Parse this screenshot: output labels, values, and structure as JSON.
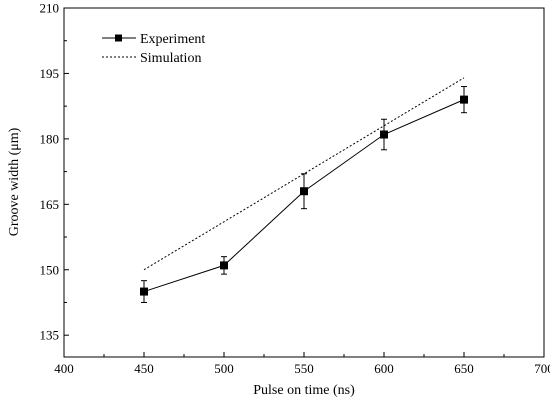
{
  "chart_data": {
    "type": "line",
    "xlabel": "Pulse on time (ns)",
    "ylabel": "Groove width (μm)",
    "xlim": [
      400,
      700
    ],
    "ylim": [
      130,
      210
    ],
    "xticks": [
      400,
      450,
      500,
      550,
      600,
      650,
      700
    ],
    "yticks": [
      135,
      150,
      165,
      180,
      195,
      210
    ],
    "grid": false,
    "legend_position": "top-left",
    "series": [
      {
        "name": "Experiment",
        "style": "solid",
        "marker": "square",
        "color": "#000000",
        "x": [
          450,
          500,
          550,
          600,
          650
        ],
        "y": [
          145,
          151,
          168,
          181,
          189
        ],
        "yerr": [
          2.5,
          2,
          4,
          3.5,
          3
        ]
      },
      {
        "name": "Simulation",
        "style": "dashed",
        "marker": "none",
        "color": "#000000",
        "x": [
          450,
          650
        ],
        "y": [
          150,
          194
        ]
      }
    ]
  }
}
